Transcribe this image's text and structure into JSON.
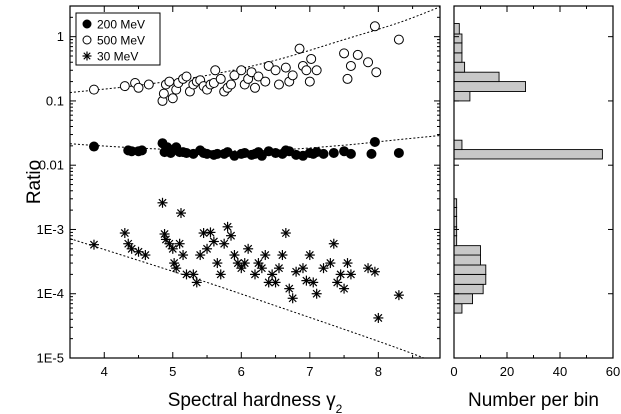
{
  "chart_data": [
    {
      "type": "scatter",
      "xlabel": "Spectral hardness γ",
      "xlabel_sub": "2",
      "ylabel": "Ratio",
      "xlim": [
        3.5,
        8.9
      ],
      "ylim": [
        1e-05,
        3
      ],
      "yscale": "log",
      "x_ticks": [
        4,
        5,
        6,
        7,
        8
      ],
      "x_tick_labels": [
        "4",
        "5",
        "6",
        "7",
        "8"
      ],
      "y_ticks": [
        1,
        0.1,
        0.01,
        0.001,
        0.0001,
        1e-05
      ],
      "y_tick_labels": [
        "1",
        "0.1",
        "0.01",
        "1E-3",
        "1E-4",
        "1E-5"
      ],
      "legend_position": "top-left",
      "legend": [
        "200 MeV",
        "500 MeV",
        "30 MeV"
      ],
      "series": [
        {
          "name": "200 MeV",
          "marker": "filled-circle",
          "points": [
            [
              3.85,
              0.0195
            ],
            [
              4.35,
              0.017
            ],
            [
              4.4,
              0.0165
            ],
            [
              4.5,
              0.0165
            ],
            [
              4.55,
              0.017
            ],
            [
              4.85,
              0.022
            ],
            [
              4.88,
              0.016
            ],
            [
              4.92,
              0.019
            ],
            [
              4.97,
              0.0155
            ],
            [
              5.0,
              0.017
            ],
            [
              5.05,
              0.019
            ],
            [
              5.1,
              0.016
            ],
            [
              5.15,
              0.016
            ],
            [
              5.2,
              0.0155
            ],
            [
              5.3,
              0.015
            ],
            [
              5.4,
              0.017
            ],
            [
              5.45,
              0.0155
            ],
            [
              5.5,
              0.015
            ],
            [
              5.6,
              0.0145
            ],
            [
              5.65,
              0.015
            ],
            [
              5.75,
              0.015
            ],
            [
              5.8,
              0.016
            ],
            [
              5.9,
              0.014
            ],
            [
              6.0,
              0.015
            ],
            [
              6.05,
              0.0155
            ],
            [
              6.15,
              0.0145
            ],
            [
              6.2,
              0.015
            ],
            [
              6.25,
              0.016
            ],
            [
              6.3,
              0.014
            ],
            [
              6.4,
              0.0165
            ],
            [
              6.5,
              0.0155
            ],
            [
              6.6,
              0.015
            ],
            [
              6.65,
              0.017
            ],
            [
              6.7,
              0.0165
            ],
            [
              6.8,
              0.0145
            ],
            [
              6.9,
              0.014
            ],
            [
              7.0,
              0.0155
            ],
            [
              7.05,
              0.015
            ],
            [
              7.1,
              0.016
            ],
            [
              7.2,
              0.015
            ],
            [
              7.35,
              0.0155
            ],
            [
              7.5,
              0.0165
            ],
            [
              7.6,
              0.015
            ],
            [
              7.9,
              0.015
            ],
            [
              7.95,
              0.023
            ],
            [
              8.3,
              0.0155
            ]
          ],
          "fit": [
            [
              3.5,
              0.0215
            ],
            [
              4.5,
              0.0185
            ],
            [
              5.5,
              0.0168
            ],
            [
              6.5,
              0.0172
            ],
            [
              7.5,
              0.0205
            ],
            [
              8.3,
              0.025
            ],
            [
              8.9,
              0.029
            ]
          ]
        },
        {
          "name": "500 MeV",
          "marker": "open-circle",
          "points": [
            [
              3.85,
              0.15
            ],
            [
              4.3,
              0.17
            ],
            [
              4.45,
              0.19
            ],
            [
              4.5,
              0.16
            ],
            [
              4.65,
              0.18
            ],
            [
              4.85,
              0.1
            ],
            [
              4.87,
              0.13
            ],
            [
              4.9,
              0.18
            ],
            [
              4.95,
              0.2
            ],
            [
              5.0,
              0.11
            ],
            [
              5.05,
              0.15
            ],
            [
              5.08,
              0.19
            ],
            [
              5.15,
              0.22
            ],
            [
              5.2,
              0.24
            ],
            [
              5.25,
              0.14
            ],
            [
              5.3,
              0.18
            ],
            [
              5.35,
              0.2
            ],
            [
              5.4,
              0.21
            ],
            [
              5.45,
              0.17
            ],
            [
              5.5,
              0.15
            ],
            [
              5.55,
              0.18
            ],
            [
              5.6,
              0.19
            ],
            [
              5.62,
              0.3
            ],
            [
              5.7,
              0.22
            ],
            [
              5.75,
              0.14
            ],
            [
              5.8,
              0.16
            ],
            [
              5.85,
              0.18
            ],
            [
              5.9,
              0.25
            ],
            [
              6.0,
              0.3
            ],
            [
              6.05,
              0.18
            ],
            [
              6.1,
              0.22
            ],
            [
              6.15,
              0.28
            ],
            [
              6.2,
              0.16
            ],
            [
              6.25,
              0.24
            ],
            [
              6.35,
              0.2
            ],
            [
              6.4,
              0.35
            ],
            [
              6.5,
              0.3
            ],
            [
              6.55,
              0.18
            ],
            [
              6.65,
              0.33
            ],
            [
              6.7,
              0.2
            ],
            [
              6.75,
              0.25
            ],
            [
              6.85,
              0.65
            ],
            [
              6.9,
              0.35
            ],
            [
              6.95,
              0.3
            ],
            [
              7.0,
              0.2
            ],
            [
              7.02,
              0.45
            ],
            [
              7.1,
              0.3
            ],
            [
              7.5,
              0.55
            ],
            [
              7.55,
              0.22
            ],
            [
              7.6,
              0.35
            ],
            [
              7.7,
              0.52
            ],
            [
              7.85,
              0.4
            ],
            [
              7.95,
              1.45
            ],
            [
              7.97,
              0.28
            ],
            [
              8.3,
              0.9
            ]
          ],
          "fit": [
            [
              3.5,
              0.135
            ],
            [
              4.5,
              0.175
            ],
            [
              5.5,
              0.25
            ],
            [
              6.5,
              0.43
            ],
            [
              7.5,
              0.9
            ],
            [
              8.3,
              1.65
            ],
            [
              8.9,
              2.9
            ]
          ]
        },
        {
          "name": "30 MeV",
          "marker": "asterisk",
          "points": [
            [
              3.85,
              0.00058
            ],
            [
              4.3,
              0.00088
            ],
            [
              4.35,
              0.0006
            ],
            [
              4.4,
              0.0005
            ],
            [
              4.5,
              0.00045
            ],
            [
              4.6,
              0.0004
            ],
            [
              4.85,
              0.0026
            ],
            [
              4.88,
              0.00085
            ],
            [
              4.9,
              0.0007
            ],
            [
              4.95,
              0.0006
            ],
            [
              5.0,
              0.0005
            ],
            [
              5.02,
              0.0003
            ],
            [
              5.05,
              0.00025
            ],
            [
              5.1,
              0.0006
            ],
            [
              5.12,
              0.0018
            ],
            [
              5.15,
              0.0004
            ],
            [
              5.2,
              0.0002
            ],
            [
              5.3,
              0.0002
            ],
            [
              5.35,
              0.00015
            ],
            [
              5.4,
              0.0004
            ],
            [
              5.45,
              0.00088
            ],
            [
              5.5,
              0.0005
            ],
            [
              5.55,
              0.0009
            ],
            [
              5.6,
              0.00065
            ],
            [
              5.65,
              0.0003
            ],
            [
              5.7,
              0.0002
            ],
            [
              5.75,
              0.0006
            ],
            [
              5.8,
              0.0011
            ],
            [
              5.85,
              0.0008
            ],
            [
              5.9,
              0.0004
            ],
            [
              5.95,
              0.0003
            ],
            [
              6.0,
              0.00025
            ],
            [
              6.05,
              0.0003
            ],
            [
              6.1,
              0.0005
            ],
            [
              6.2,
              0.0002
            ],
            [
              6.25,
              0.0003
            ],
            [
              6.3,
              0.00025
            ],
            [
              6.35,
              0.0004
            ],
            [
              6.4,
              0.00015
            ],
            [
              6.45,
              0.0002
            ],
            [
              6.5,
              0.00015
            ],
            [
              6.55,
              0.00025
            ],
            [
              6.6,
              0.0004
            ],
            [
              6.65,
              0.00088
            ],
            [
              6.7,
              0.00012
            ],
            [
              6.75,
              8.5e-05
            ],
            [
              6.8,
              0.00022
            ],
            [
              6.9,
              0.00025
            ],
            [
              6.95,
              0.00016
            ],
            [
              7.0,
              0.0004
            ],
            [
              7.05,
              0.00015
            ],
            [
              7.1,
              0.0001
            ],
            [
              7.2,
              0.00025
            ],
            [
              7.3,
              0.0003
            ],
            [
              7.35,
              0.0006
            ],
            [
              7.4,
              0.00015
            ],
            [
              7.45,
              0.0002
            ],
            [
              7.5,
              0.00012
            ],
            [
              7.55,
              0.0003
            ],
            [
              7.6,
              0.0002
            ],
            [
              7.85,
              0.00025
            ],
            [
              7.95,
              0.00022
            ],
            [
              8.0,
              4.2e-05
            ],
            [
              8.3,
              9.5e-05
            ]
          ],
          "fit": [
            [
              3.5,
              0.00072
            ],
            [
              4.5,
              0.00033
            ],
            [
              5.5,
              0.00015
            ],
            [
              6.5,
              6.5e-05
            ],
            [
              7.5,
              2.8e-05
            ],
            [
              8.3,
              1.4e-05
            ],
            [
              8.9,
              8e-06
            ]
          ]
        }
      ]
    },
    {
      "type": "histogram",
      "orientation": "horizontal",
      "xlabel": "Number per bin",
      "xlim": [
        0,
        60
      ],
      "x_ticks": [
        0,
        20,
        40,
        60
      ],
      "x_tick_labels": [
        "0",
        "20",
        "40",
        "60"
      ],
      "yscale": "log",
      "bins": [
        {
          "low": 5e-05,
          "high": 7e-05,
          "count": 3
        },
        {
          "low": 7e-05,
          "high": 0.0001,
          "count": 7
        },
        {
          "low": 0.0001,
          "high": 0.00014,
          "count": 11
        },
        {
          "low": 0.00014,
          "high": 0.0002,
          "count": 12
        },
        {
          "low": 0.0002,
          "high": 0.00028,
          "count": 12
        },
        {
          "low": 0.00028,
          "high": 0.0004,
          "count": 10
        },
        {
          "low": 0.0004,
          "high": 0.00056,
          "count": 10
        },
        {
          "low": 0.00056,
          "high": 0.0008,
          "count": 1
        },
        {
          "low": 0.0008,
          "high": 0.0011,
          "count": 1
        },
        {
          "low": 0.0011,
          "high": 0.0016,
          "count": 1
        },
        {
          "low": 0.0016,
          "high": 0.0022,
          "count": 1
        },
        {
          "low": 0.0022,
          "high": 0.003,
          "count": 1
        },
        {
          "low": 0.0125,
          "high": 0.0175,
          "count": 56
        },
        {
          "low": 0.0175,
          "high": 0.0245,
          "count": 3
        },
        {
          "low": 0.1,
          "high": 0.14,
          "count": 6
        },
        {
          "low": 0.14,
          "high": 0.2,
          "count": 27
        },
        {
          "low": 0.2,
          "high": 0.28,
          "count": 17
        },
        {
          "low": 0.28,
          "high": 0.4,
          "count": 4
        },
        {
          "low": 0.4,
          "high": 0.56,
          "count": 3
        },
        {
          "low": 0.56,
          "high": 0.8,
          "count": 3
        },
        {
          "low": 0.8,
          "high": 1.1,
          "count": 3
        },
        {
          "low": 1.1,
          "high": 1.6,
          "count": 2
        }
      ],
      "bar_color": "#c8c8c8"
    }
  ]
}
